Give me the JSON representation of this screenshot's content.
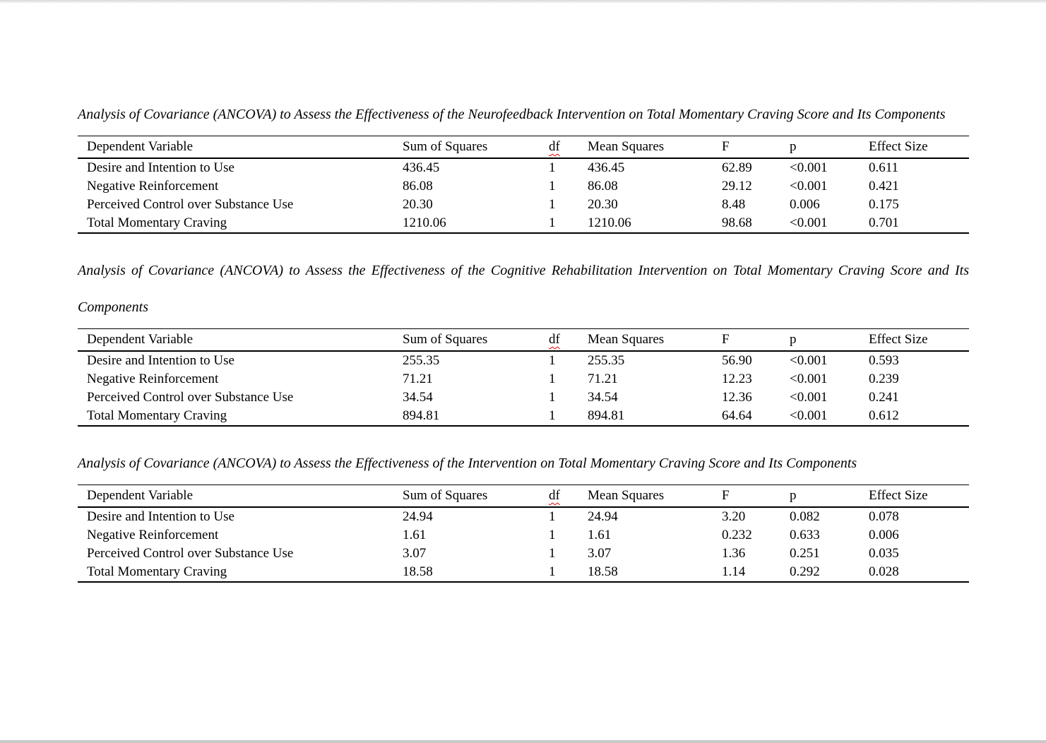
{
  "page": {
    "background": "#ffffff",
    "edge_top_color": "#dadada",
    "edge_bottom_color": "#c8c8c8",
    "text_color": "#000000",
    "spellcheck_underline_color": "#e00000",
    "spellcheck_flagged_text": "df"
  },
  "tables": [
    {
      "title": "Analysis of Covariance (ANCOVA) to Assess the Effectiveness of the Neurofeedback Intervention on Total Momentary Craving Score and Its Components",
      "columns": [
        "Dependent Variable",
        "Sum of Squares",
        "df",
        "Mean Squares",
        "F",
        "p",
        "Effect Size"
      ],
      "rows": [
        [
          "Desire and Intention to Use",
          "436.45",
          "1",
          "436.45",
          "62.89",
          "<0.001",
          "0.611"
        ],
        [
          "Negative Reinforcement",
          "86.08",
          "1",
          "86.08",
          "29.12",
          "<0.001",
          "0.421"
        ],
        [
          "Perceived Control over Substance Use",
          "20.30",
          "1",
          "20.30",
          "8.48",
          "0.006",
          "0.175"
        ],
        [
          "Total Momentary Craving",
          "1210.06",
          "1",
          "1210.06",
          "98.68",
          "<0.001",
          "0.701"
        ]
      ]
    },
    {
      "title": "Analysis of Covariance (ANCOVA) to Assess the Effectiveness of the Cognitive Rehabilitation Intervention on Total Momentary Craving Score and Its Components",
      "columns": [
        "Dependent Variable",
        "Sum of Squares",
        "df",
        "Mean Squares",
        "F",
        "p",
        "Effect Size"
      ],
      "rows": [
        [
          "Desire and Intention to Use",
          "255.35",
          "1",
          "255.35",
          "56.90",
          "<0.001",
          "0.593"
        ],
        [
          "Negative Reinforcement",
          "71.21",
          "1",
          "71.21",
          "12.23",
          "<0.001",
          "0.239"
        ],
        [
          "Perceived Control over Substance Use",
          "34.54",
          "1",
          "34.54",
          "12.36",
          "<0.001",
          "0.241"
        ],
        [
          "Total Momentary Craving",
          "894.81",
          "1",
          "894.81",
          "64.64",
          "<0.001",
          "0.612"
        ]
      ]
    },
    {
      "title": "Analysis of Covariance (ANCOVA) to Assess the Effectiveness of the Intervention on Total Momentary Craving Score and Its Components",
      "columns": [
        "Dependent Variable",
        "Sum of Squares",
        "df",
        "Mean Squares",
        "F",
        "p",
        "Effect Size"
      ],
      "rows": [
        [
          "Desire and Intention to Use",
          "24.94",
          "1",
          "24.94",
          "3.20",
          "0.082",
          "0.078"
        ],
        [
          "Negative Reinforcement",
          "1.61",
          "1",
          "1.61",
          "0.232",
          "0.633",
          "0.006"
        ],
        [
          "Perceived Control over Substance Use",
          "3.07",
          "1",
          "3.07",
          "1.36",
          "0.251",
          "0.035"
        ],
        [
          "Total Momentary Craving",
          "18.58",
          "1",
          "18.58",
          "1.14",
          "0.292",
          "0.028"
        ]
      ]
    }
  ]
}
